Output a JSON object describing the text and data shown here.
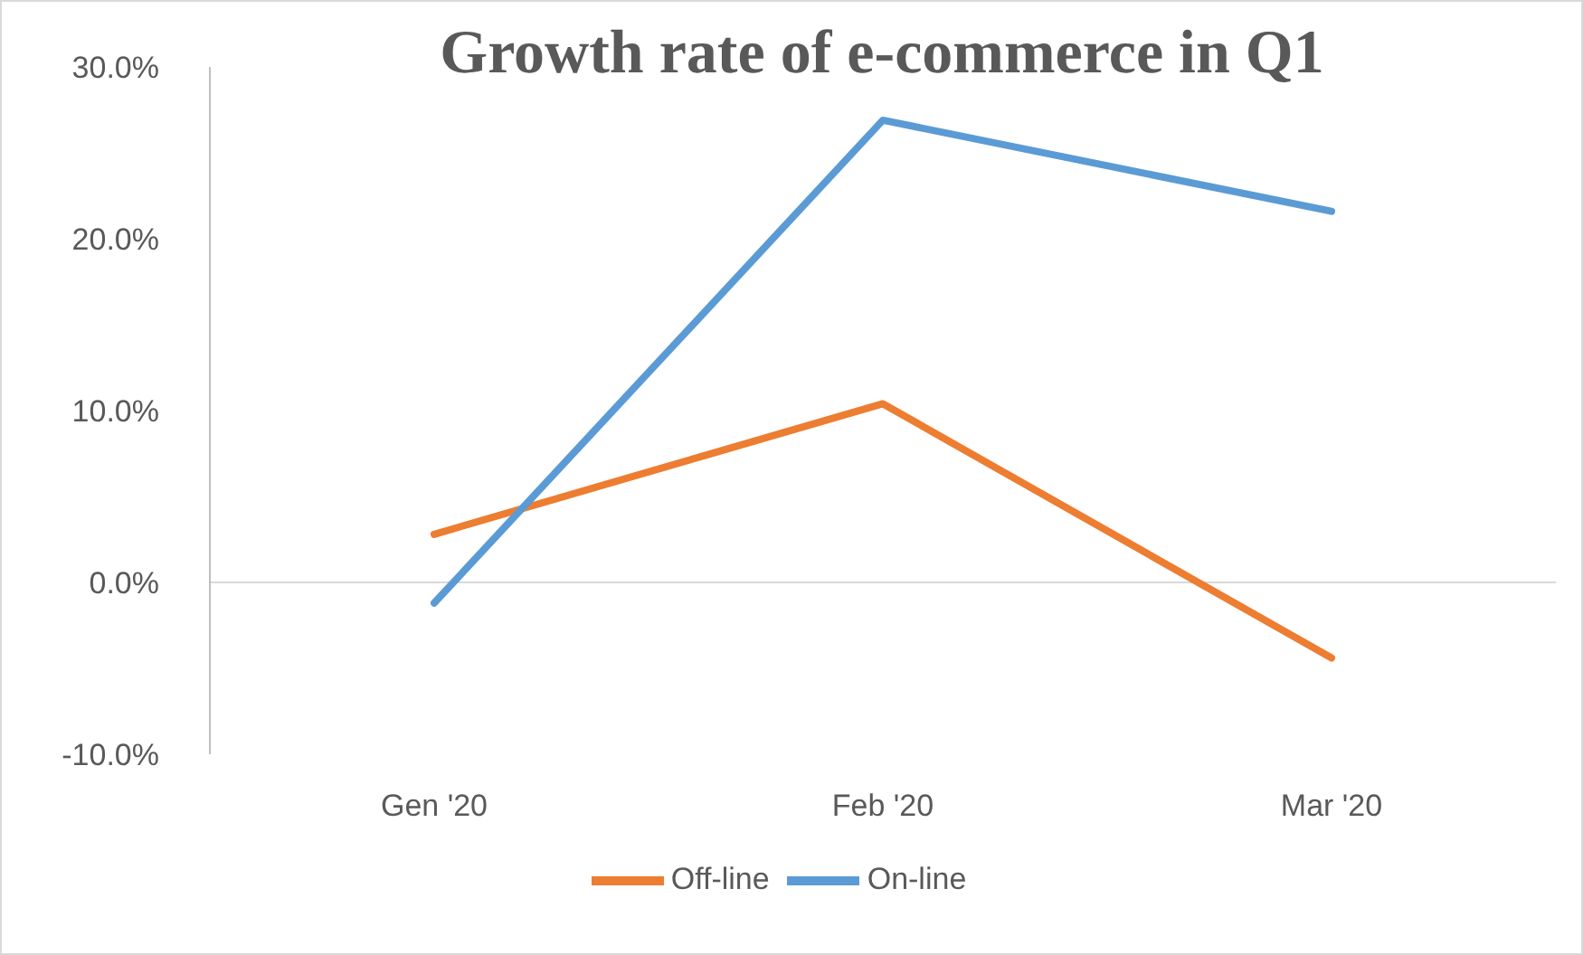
{
  "chart_data": {
    "type": "line",
    "title": "Growth rate of e-commerce in Q1",
    "categories": [
      "Gen '20",
      "Feb '20",
      "Mar '20"
    ],
    "series": [
      {
        "name": "Off-line",
        "color": "#ed7d31",
        "values": [
          2.8,
          10.4,
          -4.4
        ]
      },
      {
        "name": "On-line",
        "color": "#5b9bd5",
        "values": [
          -1.2,
          26.9,
          21.6
        ]
      }
    ],
    "ylim": [
      -10,
      30
    ],
    "yticks": [
      {
        "value": -10,
        "label": "-10.0%"
      },
      {
        "value": 0,
        "label": "0.0%"
      },
      {
        "value": 10,
        "label": "10.0%"
      },
      {
        "value": 20,
        "label": "20.0%"
      },
      {
        "value": 30,
        "label": "30.0%"
      }
    ],
    "legend": "bottom",
    "marker": "none",
    "line_style": "solid"
  }
}
